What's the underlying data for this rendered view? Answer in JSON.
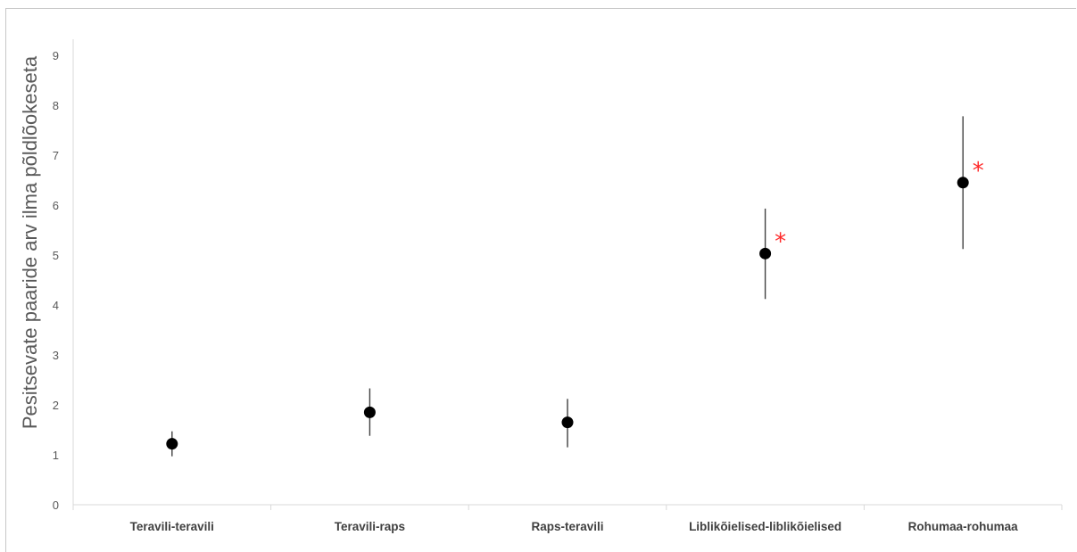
{
  "chart_data": {
    "type": "scatter",
    "title": "",
    "xlabel": "",
    "ylabel": "Pesitsevate paaride arv ilma põldlõokeseta",
    "ylim": [
      0,
      9
    ],
    "yticks": [
      0,
      1,
      2,
      3,
      4,
      5,
      6,
      7,
      8,
      9
    ],
    "grid": false,
    "categories": [
      "Teravili-teravili",
      "Teravili-raps",
      "Raps-teravili",
      "Liblikõielised-liblikõielised",
      "Rohumaa-rohumaa"
    ],
    "values": [
      1.22,
      1.85,
      1.65,
      5.03,
      6.45
    ],
    "error_low": [
      0.97,
      1.38,
      1.15,
      4.12,
      5.12
    ],
    "error_high": [
      1.47,
      2.33,
      2.12,
      5.93,
      7.78
    ],
    "significance": [
      "",
      "",
      "",
      "*",
      "*"
    ],
    "marker_color": "#000000",
    "errorbar_color": "#404040",
    "significance_color": "#ff2a2a",
    "axis_color": "#d9d9d9"
  }
}
